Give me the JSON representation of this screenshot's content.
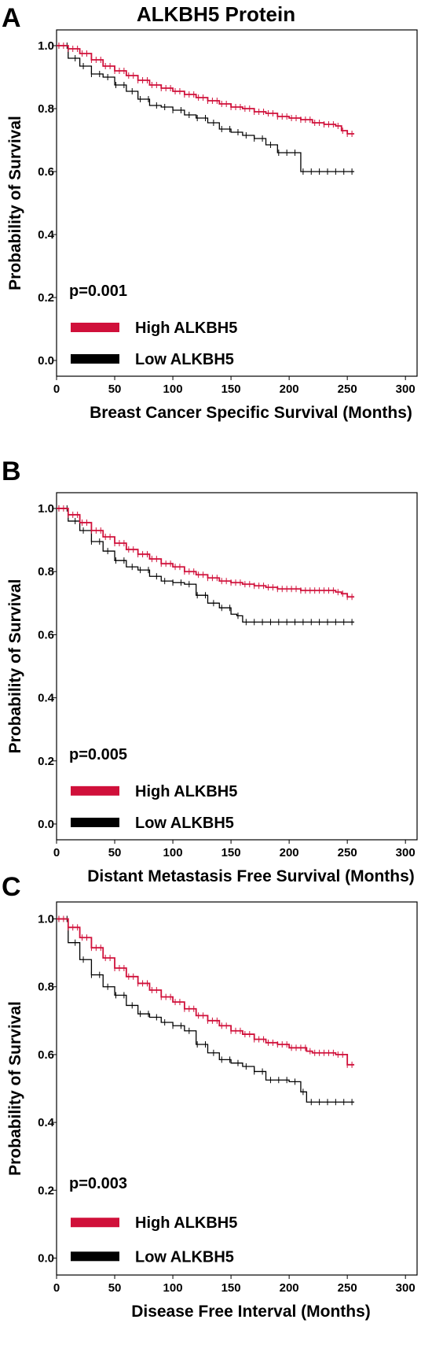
{
  "title": "ALKBH5 Protein",
  "colors": {
    "high": "#d0103a",
    "low": "#000000",
    "frame": "#000000"
  },
  "chart_data": [
    {
      "type": "line",
      "panel": "A",
      "xlabel": "Breast Cancer Specific Survival (Months)",
      "ylabel": "Probability of Survival",
      "xlim": [
        0,
        310
      ],
      "ylim": [
        -0.05,
        1.05
      ],
      "xticks": [
        "0",
        "50",
        "100",
        "150",
        "200",
        "250",
        "300"
      ],
      "yticks": [
        "0.0",
        "0.2",
        "0.4",
        "0.6",
        "0.8",
        "1.0"
      ],
      "pvalue": "p=0.001",
      "legend": [
        "High ALKBH5",
        "Low ALKBH5"
      ],
      "series": [
        {
          "name": "High ALKBH5",
          "x": [
            0,
            10,
            20,
            30,
            40,
            50,
            60,
            70,
            80,
            90,
            100,
            110,
            120,
            130,
            140,
            150,
            160,
            170,
            180,
            190,
            200,
            210,
            220,
            230,
            235,
            240,
            245,
            250,
            256
          ],
          "y": [
            1.0,
            0.99,
            0.975,
            0.955,
            0.935,
            0.92,
            0.905,
            0.89,
            0.875,
            0.865,
            0.855,
            0.845,
            0.835,
            0.825,
            0.815,
            0.805,
            0.8,
            0.79,
            0.785,
            0.775,
            0.77,
            0.765,
            0.755,
            0.75,
            0.75,
            0.745,
            0.73,
            0.72,
            0.72
          ]
        },
        {
          "name": "Low ALKBH5",
          "x": [
            0,
            10,
            20,
            30,
            40,
            50,
            60,
            70,
            80,
            90,
            100,
            110,
            120,
            130,
            140,
            150,
            160,
            170,
            180,
            190,
            200,
            205,
            210,
            220,
            230,
            240,
            256
          ],
          "y": [
            1.0,
            0.96,
            0.935,
            0.91,
            0.9,
            0.875,
            0.855,
            0.83,
            0.81,
            0.805,
            0.795,
            0.78,
            0.77,
            0.755,
            0.735,
            0.725,
            0.715,
            0.705,
            0.685,
            0.66,
            0.66,
            0.66,
            0.6,
            0.6,
            0.6,
            0.6,
            0.6
          ]
        }
      ]
    },
    {
      "type": "line",
      "panel": "B",
      "xlabel": "Distant Metastasis Free Survival (Months)",
      "ylabel": "Probability of Survival",
      "xlim": [
        0,
        310
      ],
      "ylim": [
        -0.05,
        1.05
      ],
      "xticks": [
        "0",
        "50",
        "100",
        "150",
        "200",
        "250",
        "300"
      ],
      "yticks": [
        "0.0",
        "0.2",
        "0.4",
        "0.6",
        "0.8",
        "1.0"
      ],
      "pvalue": "p=0.005",
      "legend": [
        "High ALKBH5",
        "Low ALKBH5"
      ],
      "series": [
        {
          "name": "High ALKBH5",
          "x": [
            0,
            10,
            20,
            30,
            40,
            50,
            60,
            70,
            80,
            90,
            100,
            110,
            120,
            130,
            140,
            150,
            160,
            170,
            180,
            190,
            200,
            210,
            220,
            230,
            240,
            245,
            250,
            256
          ],
          "y": [
            1.0,
            0.98,
            0.955,
            0.93,
            0.91,
            0.89,
            0.87,
            0.855,
            0.84,
            0.825,
            0.815,
            0.8,
            0.79,
            0.78,
            0.77,
            0.765,
            0.76,
            0.755,
            0.75,
            0.745,
            0.745,
            0.74,
            0.74,
            0.74,
            0.735,
            0.73,
            0.72,
            0.72
          ]
        },
        {
          "name": "Low ALKBH5",
          "x": [
            0,
            10,
            20,
            30,
            40,
            50,
            60,
            70,
            80,
            90,
            100,
            110,
            120,
            130,
            140,
            150,
            155,
            160,
            180,
            200,
            220,
            240,
            256
          ],
          "y": [
            1.0,
            0.96,
            0.93,
            0.895,
            0.865,
            0.835,
            0.815,
            0.805,
            0.785,
            0.77,
            0.765,
            0.76,
            0.725,
            0.7,
            0.685,
            0.665,
            0.66,
            0.64,
            0.64,
            0.64,
            0.64,
            0.64,
            0.64
          ]
        }
      ]
    },
    {
      "type": "line",
      "panel": "C",
      "xlabel": "Disease Free Interval (Months)",
      "ylabel": "Probability of Survival",
      "xlim": [
        0,
        310
      ],
      "ylim": [
        -0.05,
        1.05
      ],
      "xticks": [
        "0",
        "50",
        "100",
        "150",
        "200",
        "250",
        "300"
      ],
      "yticks": [
        "0.0",
        "0.2",
        "0.4",
        "0.6",
        "0.8",
        "1.0"
      ],
      "pvalue": "p=0.003",
      "legend": [
        "High ALKBH5",
        "Low ALKBH5"
      ],
      "series": [
        {
          "name": "High ALKBH5",
          "x": [
            0,
            10,
            20,
            30,
            40,
            50,
            60,
            70,
            80,
            90,
            100,
            110,
            120,
            130,
            140,
            150,
            160,
            170,
            180,
            190,
            200,
            210,
            215,
            220,
            230,
            240,
            245,
            250,
            256
          ],
          "y": [
            1.0,
            0.975,
            0.945,
            0.915,
            0.885,
            0.855,
            0.83,
            0.81,
            0.79,
            0.77,
            0.755,
            0.735,
            0.715,
            0.7,
            0.685,
            0.67,
            0.66,
            0.645,
            0.635,
            0.63,
            0.62,
            0.62,
            0.61,
            0.605,
            0.605,
            0.6,
            0.6,
            0.57,
            0.57
          ]
        },
        {
          "name": "Low ALKBH5",
          "x": [
            0,
            10,
            20,
            30,
            40,
            50,
            60,
            70,
            80,
            90,
            100,
            110,
            120,
            130,
            140,
            150,
            160,
            170,
            180,
            190,
            200,
            210,
            215,
            220,
            230,
            240,
            256
          ],
          "y": [
            1.0,
            0.93,
            0.88,
            0.835,
            0.8,
            0.775,
            0.745,
            0.72,
            0.71,
            0.695,
            0.685,
            0.67,
            0.63,
            0.605,
            0.585,
            0.575,
            0.565,
            0.55,
            0.525,
            0.525,
            0.52,
            0.49,
            0.46,
            0.46,
            0.46,
            0.46,
            0.46
          ]
        }
      ]
    }
  ]
}
